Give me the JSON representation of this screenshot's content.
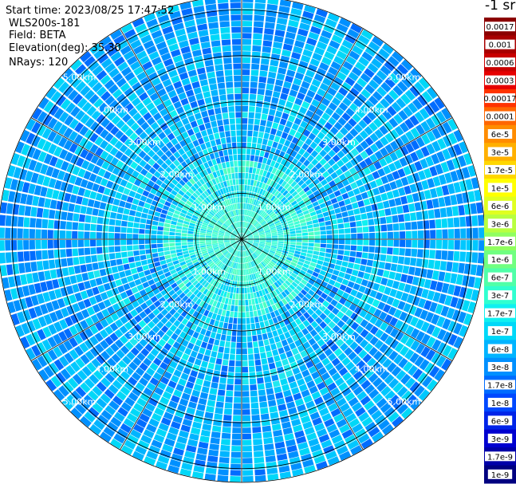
{
  "header": {
    "start_time": "Start time: 2023/08/25 17:47:52",
    "device": "WLS200s-181",
    "field": "Field: BETA",
    "elevation": "Elevation(deg): 35.30",
    "nrays": "NRays: 120"
  },
  "colorbar": {
    "unit_label": "-1 sr",
    "ticks": [
      "0.0017",
      "0.001",
      "0.0006",
      "0.0003",
      "0.00017",
      "0.0001",
      "6e-5",
      "3e-5",
      "1.7e-5",
      "1e-5",
      "6e-6",
      "3e-6",
      "1.7e-6",
      "1e-6",
      "6e-7",
      "3e-7",
      "1.7e-7",
      "1e-7",
      "6e-8",
      "3e-8",
      "1.7e-8",
      "1e-8",
      "6e-9",
      "3e-9",
      "1.7e-9",
      "1e-9"
    ],
    "colors": [
      "#8b0000",
      "#a80000",
      "#c80000",
      "#e60000",
      "#ff3300",
      "#ff6600",
      "#ff8c00",
      "#ffb000",
      "#ffd700",
      "#ffff00",
      "#e0ff20",
      "#b8ff40",
      "#90ff60",
      "#70ff80",
      "#50ffa8",
      "#30ffd0",
      "#10f0f0",
      "#00d8f8",
      "#00b4ff",
      "#0090ff",
      "#006cff",
      "#0048ff",
      "#0024e8",
      "#0000d0",
      "#0000a8",
      "#000080"
    ]
  },
  "chart_data": {
    "type": "heatmap",
    "projection": "polar-ppi",
    "title": "",
    "n_rays": 120,
    "elevation_deg": 35.3,
    "field": "BETA",
    "range_rings_km": [
      1,
      2,
      3,
      4,
      5
    ],
    "max_range_km": 5.3,
    "ring_labels": [
      "1.00km",
      "2.00km",
      "3.00km",
      "4.00km",
      "5.00km"
    ],
    "spoke_angles_deg": [
      0,
      30,
      60,
      90,
      120,
      150,
      180,
      210,
      240,
      270,
      300,
      330
    ],
    "value_range": {
      "near_range_dominant": "3e-7 to 1.7e-7",
      "far_range_dominant": "6e-8 to 1e-8"
    },
    "colorscale": "jet",
    "grid": true
  }
}
